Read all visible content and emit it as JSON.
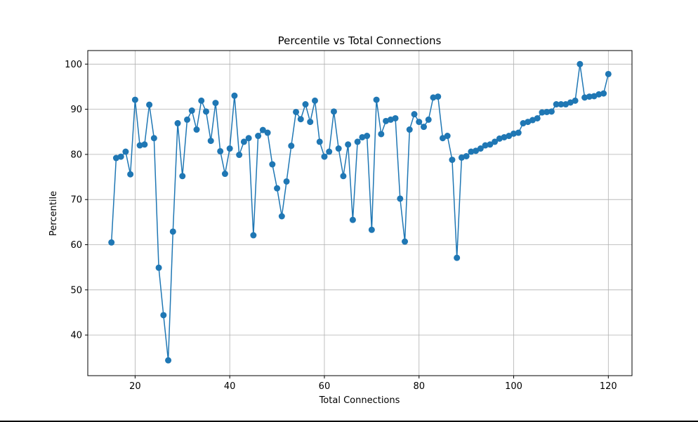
{
  "chart_data": {
    "type": "line",
    "title": "Percentile vs Total Connections",
    "xlabel": "Total Connections",
    "ylabel": "Percentile",
    "xlim": [
      10,
      125
    ],
    "ylim": [
      31,
      103
    ],
    "xticks": [
      20,
      40,
      60,
      80,
      100,
      120
    ],
    "yticks": [
      40,
      50,
      60,
      70,
      80,
      90,
      100
    ],
    "grid": true,
    "marker": "circle",
    "line_color": "#1f77b4",
    "series": [
      {
        "x": [
          15,
          16,
          17,
          18,
          19,
          20,
          21,
          22,
          23,
          24,
          25,
          26,
          27,
          28,
          29,
          30,
          31,
          32,
          33,
          34,
          35,
          36,
          37,
          38,
          39,
          40,
          41,
          42,
          43,
          44,
          45,
          46,
          47,
          48,
          49,
          50,
          51,
          52,
          53,
          54,
          55,
          56,
          57,
          58,
          59,
          60,
          61,
          62,
          63,
          64,
          65,
          66,
          67,
          68,
          69,
          70,
          71,
          72,
          73,
          74,
          75,
          76,
          77,
          78,
          79,
          80,
          81,
          82,
          83,
          84,
          85,
          86,
          87,
          88,
          89,
          90,
          91,
          92,
          93,
          94,
          95,
          96,
          97,
          98,
          99,
          100,
          101,
          102,
          103,
          104,
          105,
          106,
          107,
          108,
          109,
          110,
          111,
          112,
          113,
          114,
          115,
          116,
          117,
          118,
          119,
          120
        ],
        "y": [
          60.5,
          79.2,
          79.5,
          80.6,
          75.6,
          92.1,
          82.0,
          82.2,
          91.0,
          83.6,
          54.9,
          44.4,
          34.4,
          62.9,
          86.9,
          75.2,
          87.7,
          89.7,
          85.5,
          91.9,
          89.5,
          83.0,
          91.4,
          80.7,
          75.7,
          81.3,
          93.0,
          79.9,
          82.8,
          83.6,
          62.1,
          84.1,
          85.4,
          84.8,
          77.8,
          72.5,
          66.3,
          74.0,
          81.9,
          89.4,
          87.8,
          91.1,
          87.2,
          91.9,
          82.8,
          79.5,
          80.6,
          89.5,
          81.3,
          75.2,
          82.2,
          65.5,
          82.8,
          83.8,
          84.1,
          63.3,
          92.1,
          84.5,
          87.4,
          87.7,
          88.0,
          70.2,
          60.7,
          85.5,
          88.9,
          87.2,
          86.1,
          87.7,
          92.6,
          92.8,
          83.6,
          84.1,
          78.8,
          57.1,
          79.3,
          79.6,
          80.6,
          80.8,
          81.3,
          82.0,
          82.2,
          82.8,
          83.5,
          83.8,
          84.1,
          84.6,
          84.8,
          86.9,
          87.2,
          87.6,
          88.0,
          89.3,
          89.4,
          89.5,
          91.1,
          91.1,
          91.1,
          91.5,
          91.9,
          100.0,
          92.6,
          92.8,
          92.9,
          93.3,
          93.5,
          97.8
        ]
      }
    ]
  }
}
